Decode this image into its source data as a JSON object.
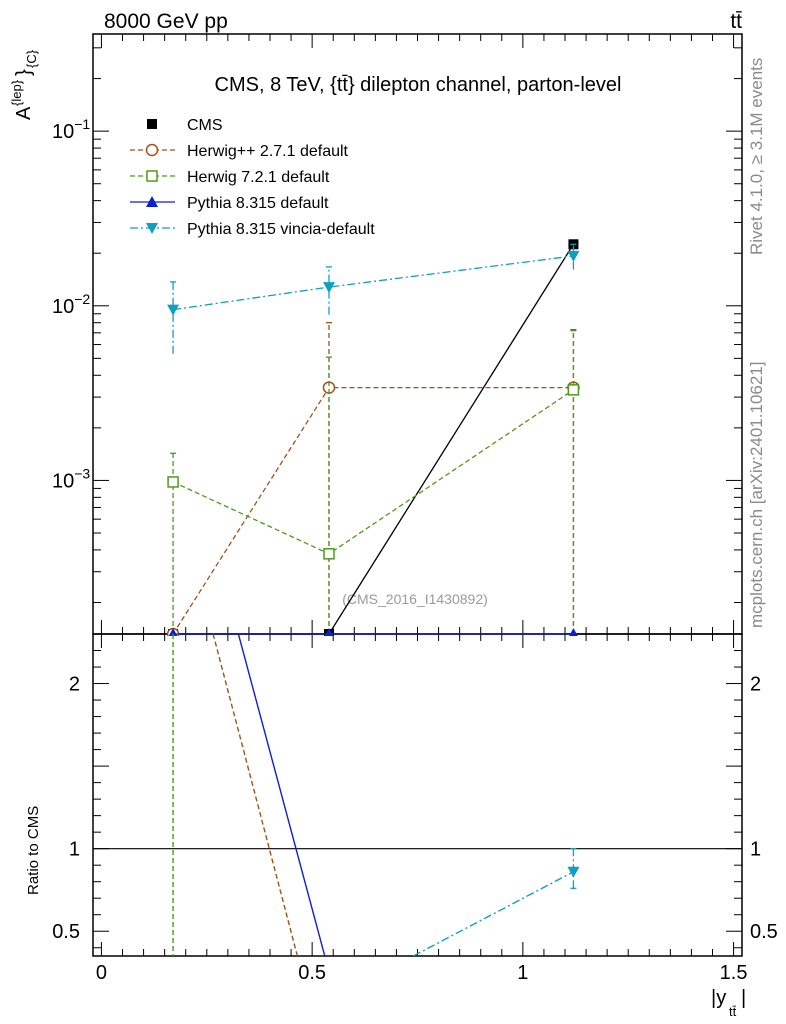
{
  "header": {
    "energy_label": "8000 GeV pp",
    "process_label": "tt̄"
  },
  "side_labels": {
    "rivet": "Rivet 4.1.0, ≥ 3.1M events",
    "source": "mcplots.cern.ch [arXiv:2401.10621]"
  },
  "chart_data": [
    {
      "panel": "main",
      "type": "line",
      "title": "CMS, 8 TeV, {tt̄} dilepton channel, parton-level",
      "ylabel": "A^{lep}_{C}",
      "yscale": "log",
      "xlim": [
        -0.02,
        1.52
      ],
      "ylim": [
        0.000132,
        0.36
      ],
      "xticks": [
        0,
        0.5,
        1,
        1.5
      ],
      "yticks": [
        0.001,
        0.01,
        0.1
      ],
      "ytick_labels": {
        "exp_m3": "−3",
        "exp_m2": "−2",
        "exp_m1": "−1",
        "base": "10"
      },
      "watermark": "(CMS_2016_I1430892)",
      "legend_position": "top-left",
      "series": [
        {
          "name": "CMS",
          "color": "#000000",
          "marker": "square-filled",
          "dash": "none",
          "x": [
            0.17,
            0.54,
            1.12
          ],
          "y": [
            0.000132,
            0.000132,
            0.0225
          ],
          "yerr_lo": [
            0,
            0,
            0
          ],
          "yerr_hi": [
            0,
            0,
            0
          ]
        },
        {
          "name": "Herwig++ 2.7.1 default",
          "color": "#a0521b",
          "marker": "circle-open",
          "dash": "5,3",
          "x": [
            0.17,
            0.54,
            1.12
          ],
          "y": [
            0.000132,
            0.0034,
            0.0034
          ],
          "yerr_lo": [
            0,
            0.003268,
            0.003268
          ],
          "yerr_hi": [
            0,
            0.0046,
            0.0039
          ]
        },
        {
          "name": "Herwig 7.2.1 default",
          "color": "#4f9a1c",
          "marker": "square-open",
          "dash": "5,3",
          "x": [
            0.17,
            0.54,
            1.12
          ],
          "y": [
            0.00098,
            0.00038,
            0.0033
          ],
          "yerr_lo": [
            0.000848,
            0.000248,
            0.003168
          ],
          "yerr_hi": [
            0.00045,
            0.0047,
            0.0039
          ]
        },
        {
          "name": "Pythia 8.315 default",
          "color": "#0f1fd0",
          "marker": "triangle-up-filled",
          "dash": "none",
          "x": [
            0.17,
            0.54,
            1.12
          ],
          "y": [
            0.000132,
            0.000132,
            0.000132
          ],
          "yerr_lo": [
            0,
            0,
            0
          ],
          "yerr_hi": [
            0,
            0,
            0
          ]
        },
        {
          "name": "Pythia 8.315 vincia-default",
          "color": "#0fa0c0",
          "marker": "triangle-down-filled",
          "dash": "8,3,2,3",
          "x": [
            0.17,
            0.54,
            1.12
          ],
          "y": [
            0.0095,
            0.0128,
            0.0193
          ],
          "yerr_lo": [
            0.0042,
            0.0039,
            0.0032
          ],
          "yerr_hi": [
            0.0042,
            0.0039,
            0.0032
          ]
        }
      ]
    },
    {
      "panel": "ratio",
      "type": "line",
      "ylabel": "Ratio to CMS",
      "xlabel": "|y_{tt̄}|",
      "xlim": [
        -0.02,
        1.52
      ],
      "ylim": [
        0.35,
        2.3
      ],
      "yticks": [
        0.5,
        1,
        2
      ],
      "ytick_labels": [
        "0.5",
        "1",
        "2"
      ],
      "xtick_labels": [
        "0",
        "0.5",
        "1",
        "1.5"
      ],
      "reference": 1,
      "segments": [
        {
          "name": "Herwig++ 2.7.1 default",
          "color": "#a0521b",
          "dash": "5,3",
          "from": [
            0.265,
            2.3
          ],
          "to": [
            0.465,
            0.35
          ]
        },
        {
          "name": "Pythia 8.315 default",
          "color": "#0f1fd0",
          "dash": "none",
          "from": [
            0.325,
            2.3
          ],
          "to": [
            0.53,
            0.35
          ]
        },
        {
          "name": "Herwig 7.2.1 default",
          "color": "#4f9a1c",
          "dash": "5,3",
          "from": [
            0.17,
            2.3
          ],
          "to": [
            0.17,
            0.35
          ]
        },
        {
          "name": "Pythia 8.315 vincia-default",
          "color": "#0fa0c0",
          "dash": "8,3,2,3",
          "from": [
            0.74,
            0.35
          ],
          "to": [
            1.12,
            0.86
          ]
        }
      ],
      "points": [
        {
          "name": "Pythia 8.315 vincia-default",
          "color": "#0fa0c0",
          "marker": "triangle-down-filled",
          "x": 1.12,
          "y": 0.86,
          "yerr_lo": 0.1,
          "yerr_hi": 0.14
        }
      ]
    }
  ]
}
